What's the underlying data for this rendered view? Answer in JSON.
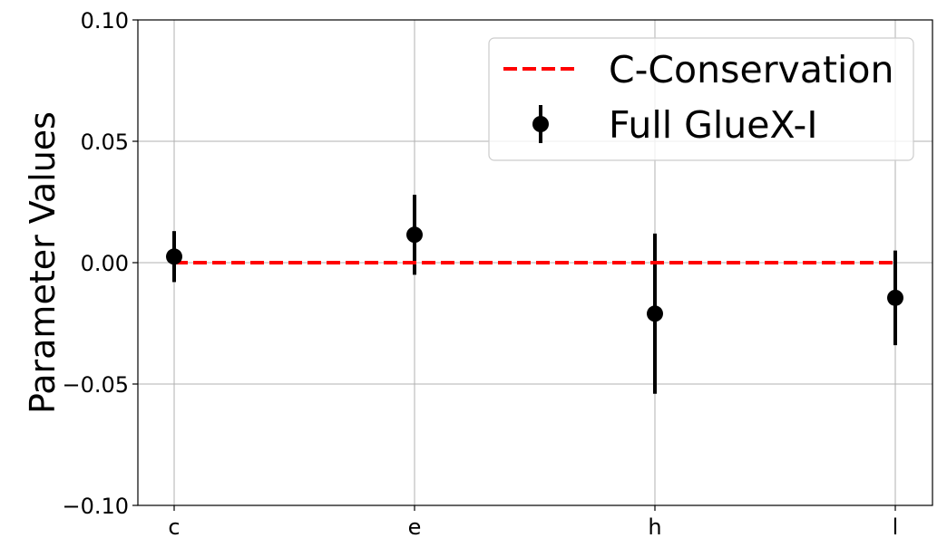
{
  "chart_data": {
    "type": "scatter",
    "title": "",
    "xlabel": "",
    "ylabel": "Parameter Values",
    "categories": [
      "c",
      "e",
      "h",
      "l"
    ],
    "ylim": [
      -0.1,
      0.1
    ],
    "yticks": [
      -0.1,
      -0.05,
      0.0,
      0.05,
      0.1
    ],
    "ytick_labels": [
      "−0.10",
      "−0.05",
      "0.00",
      "0.05",
      "0.10"
    ],
    "grid": true,
    "legend_position": "top-right",
    "series": [
      {
        "name": "Full GlueX-I",
        "kind": "errorbar",
        "color": "#000000",
        "values": [
          0.0025,
          0.0115,
          -0.021,
          -0.0145
        ],
        "errors": [
          0.0105,
          0.0165,
          0.033,
          0.0195
        ]
      },
      {
        "name": "C-Conservation",
        "kind": "dashed-line",
        "color": "#ff0000",
        "values": [
          0,
          0,
          0,
          0
        ]
      }
    ]
  }
}
